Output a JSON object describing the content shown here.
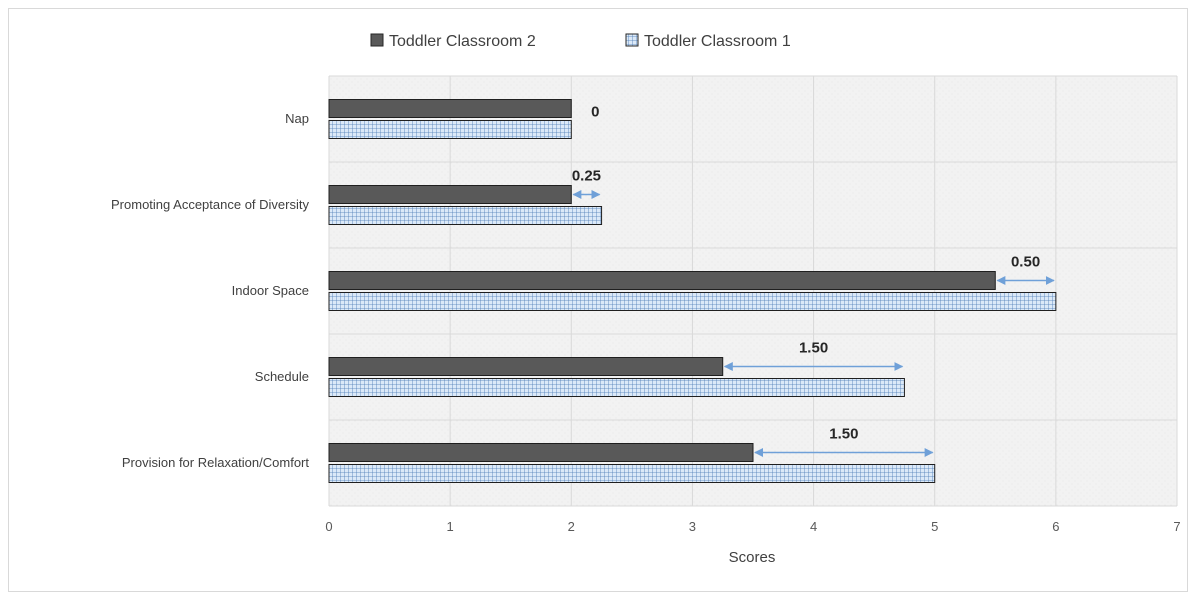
{
  "chart_data": {
    "type": "bar",
    "orientation": "horizontal",
    "categories": [
      "Nap",
      "Promoting Acceptance of Diversity",
      "Indoor Space",
      "Schedule",
      "Provision for Relaxation/Comfort"
    ],
    "series": [
      {
        "name": "Toddler Classroom 2",
        "values": [
          2,
          2,
          5.5,
          3.25,
          3.5
        ],
        "color": "#595959"
      },
      {
        "name": "Toddler Classroom 1",
        "values": [
          2,
          2.25,
          6,
          4.75,
          5
        ],
        "color": "#dbe9f8",
        "pattern": "grid"
      }
    ],
    "differences": [
      "0",
      "0.25",
      "0.50",
      "1.50",
      "1.50"
    ],
    "xlabel": "Scores",
    "xlim": [
      0,
      7
    ],
    "xticks": [
      "0",
      "1",
      "2",
      "3",
      "4",
      "5",
      "6",
      "7"
    ],
    "legend": "top",
    "grid": true
  }
}
